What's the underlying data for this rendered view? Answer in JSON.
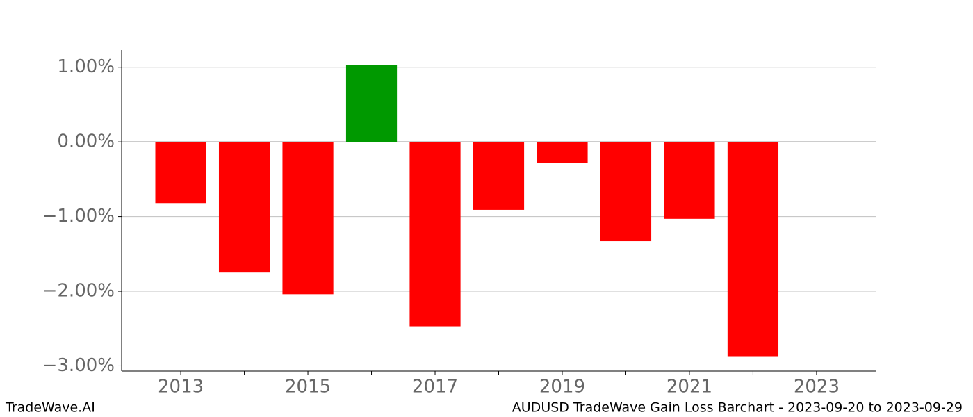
{
  "chart_data": {
    "type": "bar",
    "title": "AUDUSD TradeWave Gain Loss Barchart - 2023-09-20 to 2023-09-29",
    "source": "TradeWave.AI",
    "x": [
      2013,
      2014,
      2015,
      2016,
      2017,
      2018,
      2019,
      2020,
      2021,
      2022
    ],
    "values": [
      -0.82,
      -1.75,
      -2.04,
      1.03,
      -2.47,
      -0.91,
      -0.28,
      -1.33,
      -1.03,
      -2.87
    ],
    "colors": [
      "#ff0000",
      "#ff0000",
      "#ff0000",
      "#009900",
      "#ff0000",
      "#ff0000",
      "#ff0000",
      "#ff0000",
      "#ff0000",
      "#ff0000"
    ],
    "xlim": [
      2012.07,
      2023.93
    ],
    "xticks": [
      2013,
      2015,
      2017,
      2019,
      2021,
      2023
    ],
    "xticks_minor": [
      2014,
      2016,
      2018,
      2020,
      2022
    ],
    "ylim": [
      -3.07,
      1.23
    ],
    "yticks": [
      {
        "value": 1,
        "label": "1.00%"
      },
      {
        "value": 0,
        "label": "0.00%"
      },
      {
        "value": -1,
        "label": "−1.00%"
      },
      {
        "value": -2,
        "label": "−2.00%"
      },
      {
        "value": -3,
        "label": "−3.00%"
      }
    ],
    "grid": true
  }
}
